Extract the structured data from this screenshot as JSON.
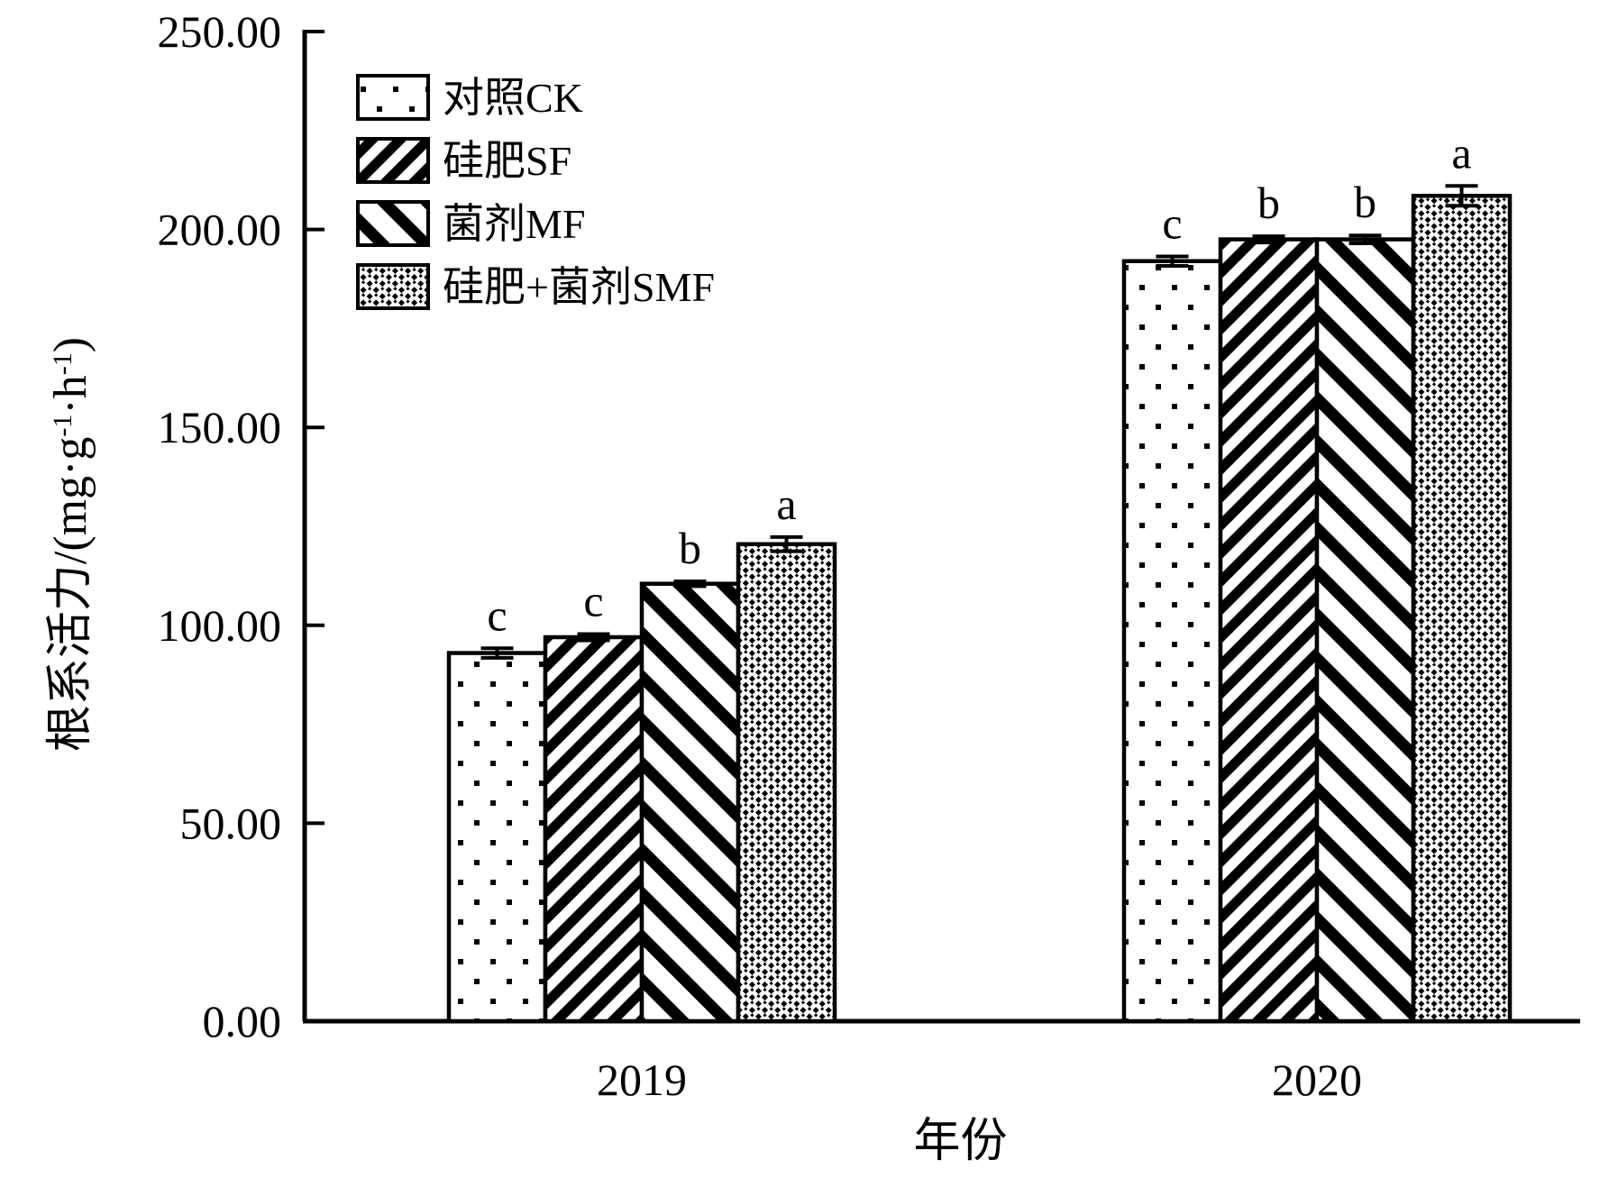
{
  "chart_data": {
    "type": "bar",
    "xlabel": "年份",
    "ylabel_text": "根系活力/(mg·g",
    "ylabel_sup1": "-1",
    "ylabel_mid": "·h",
    "ylabel_sup2": "-1",
    "ylabel_end": ")",
    "ylim": [
      0,
      250
    ],
    "yticks": [
      0,
      50,
      100,
      150,
      200,
      250
    ],
    "ytick_labels": [
      "0.00",
      "50.00",
      "100.00",
      "150.00",
      "200.00",
      "250.00"
    ],
    "categories": [
      "2019",
      "2020"
    ],
    "series": [
      {
        "name": "对照CK",
        "pattern": "dots",
        "values": [
          93,
          192
        ],
        "errors": [
          1.2,
          1.2
        ],
        "sig": [
          "c",
          "c"
        ]
      },
      {
        "name": "硅肥SF",
        "pattern": "diag-back",
        "values": [
          97,
          197.5
        ],
        "errors": [
          0.8,
          0.8
        ],
        "sig": [
          "c",
          "b"
        ]
      },
      {
        "name": "菌剂MF",
        "pattern": "diag-fwd",
        "values": [
          110.5,
          197.5
        ],
        "errors": [
          0.6,
          1.0
        ],
        "sig": [
          "b",
          "b"
        ]
      },
      {
        "name": "硅肥+菌剂SMF",
        "pattern": "checker-diag",
        "values": [
          120.5,
          208.5
        ],
        "errors": [
          1.8,
          2.5
        ],
        "sig": [
          "a",
          "a"
        ]
      }
    ],
    "legend_position": "top-left",
    "grid": false
  }
}
